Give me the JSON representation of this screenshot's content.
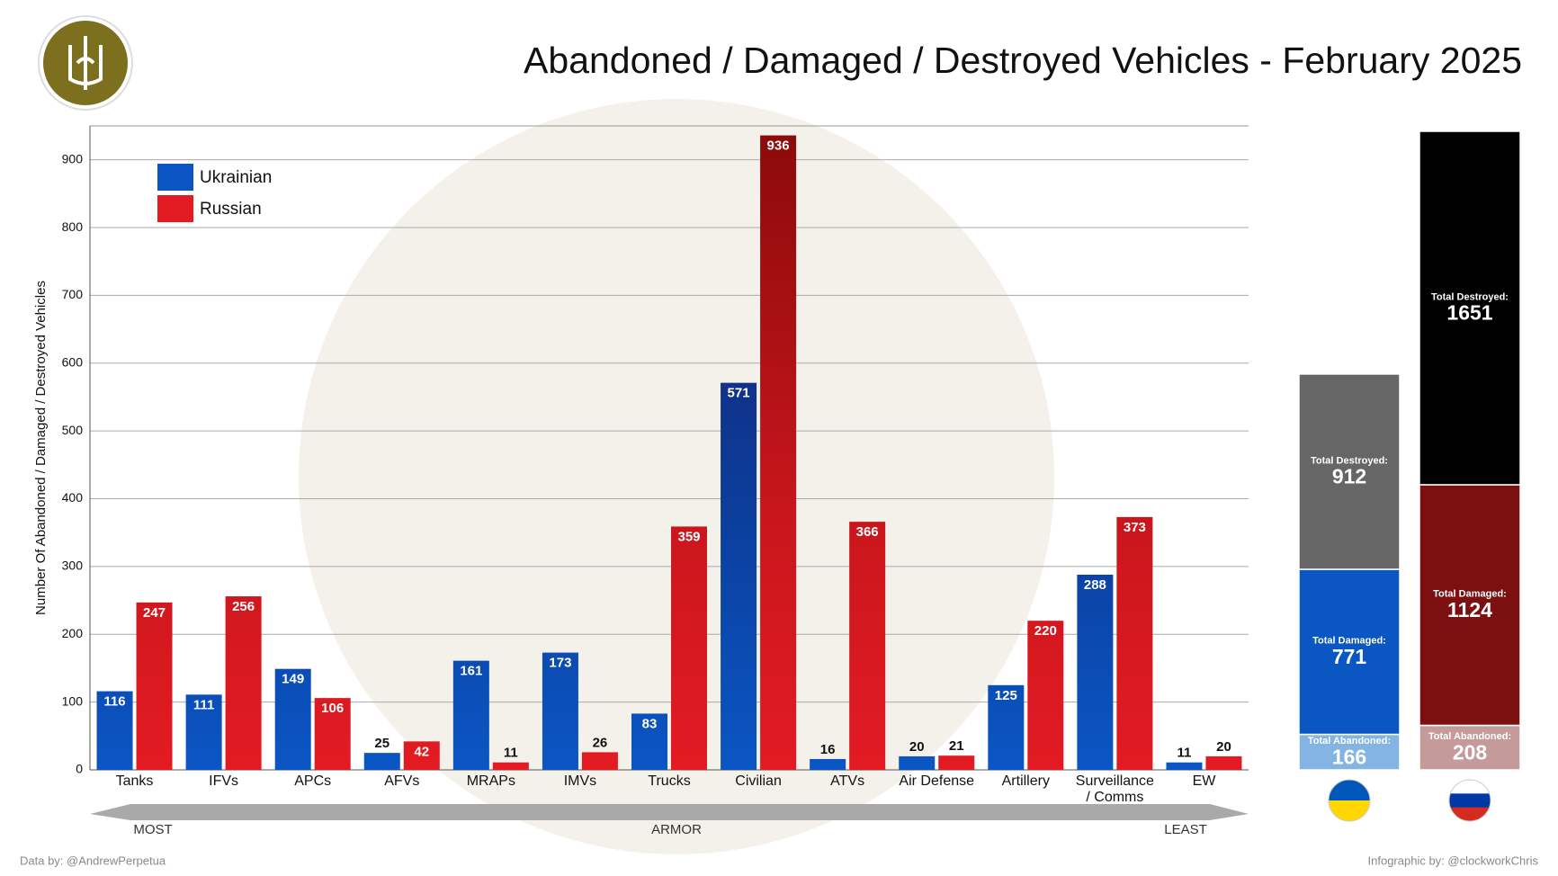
{
  "chart_data": [
    {
      "type": "bar",
      "title": "Abandoned / Damaged / Destroyed Vehicles - February 2025",
      "y_label": "Number Of Abandoned / Damaged / Destroyed Vehicles",
      "categories": [
        "Tanks",
        "IFVs",
        "APCs",
        "AFVs",
        "MRAPs",
        "IMVs",
        "Trucks",
        "Civilian",
        "ATVs",
        "Air Defense",
        "Artillery",
        "Surveillance / Comms",
        "EW"
      ],
      "series": [
        {
          "name": "Ukrainian",
          "color": "#0b56c4",
          "values": [
            116,
            111,
            149,
            25,
            161,
            173,
            83,
            571,
            16,
            20,
            125,
            288,
            11
          ]
        },
        {
          "name": "Russian",
          "color": "#e31b23",
          "values": [
            247,
            256,
            106,
            42,
            11,
            26,
            359,
            936,
            366,
            21,
            220,
            373,
            20
          ]
        }
      ],
      "ylim": [
        0,
        950
      ],
      "yticks": [
        0,
        100,
        200,
        300,
        400,
        500,
        600,
        700,
        800,
        900
      ],
      "grid": true,
      "legend": "top-left",
      "annotations": [
        "MOST",
        "ARMOR",
        "LEAST"
      ],
      "credits": [
        "Data by: @AndrewPerpetua",
        "Infographic by: @clockworkChris"
      ]
    },
    {
      "type": "stacked_bar",
      "series": [
        {
          "name": "Total Abandoned:",
          "colors": [
            "#84b4e4",
            "#c49a9b"
          ],
          "values": [
            166,
            208
          ]
        },
        {
          "name": "Total Damaged:",
          "colors": [
            "#0a56c2",
            "#7c1010"
          ],
          "values": [
            771,
            1124
          ]
        },
        {
          "name": "Total Destroyed:",
          "colors": [
            "#666666",
            "#000000"
          ],
          "values": [
            912,
            1651
          ]
        }
      ]
    }
  ]
}
